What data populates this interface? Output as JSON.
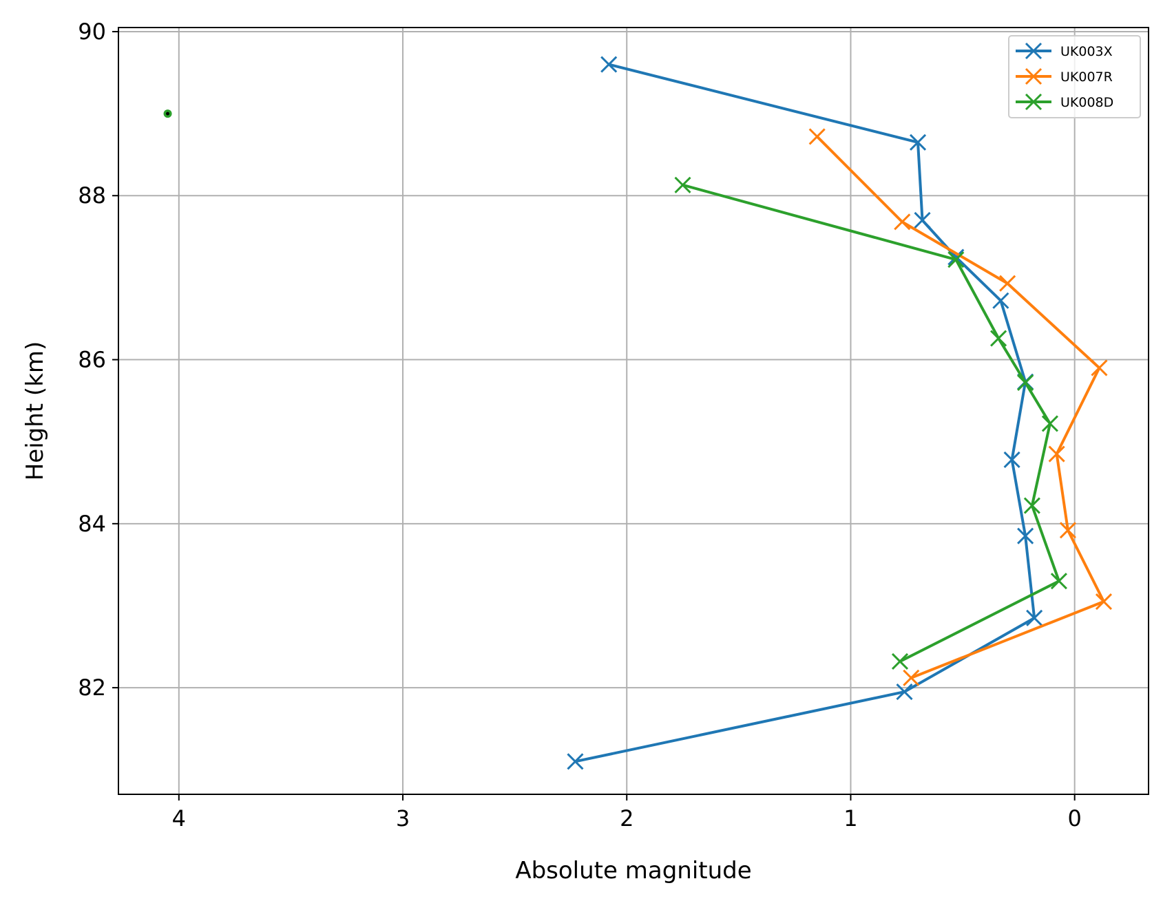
{
  "chart_data": {
    "type": "line",
    "title": "",
    "xlabel": "Absolute magnitude",
    "ylabel": "Height (km)",
    "xlim": [
      4.27,
      -0.33
    ],
    "ylim": [
      80.7,
      90.05
    ],
    "x_inverted": true,
    "grid": true,
    "x_ticks": [
      4,
      3,
      2,
      1,
      0
    ],
    "y_ticks": [
      82,
      84,
      86,
      88,
      90
    ],
    "legend_position": "top-right",
    "series": [
      {
        "name": "UK003X",
        "color": "#1f77b4",
        "marker": "x",
        "x": [
          2.08,
          0.7,
          0.68,
          0.53,
          0.33,
          0.22,
          0.28,
          0.22,
          0.18,
          0.76,
          2.23
        ],
        "y": [
          89.6,
          88.65,
          87.7,
          87.25,
          86.72,
          85.73,
          84.78,
          83.85,
          82.85,
          81.95,
          81.1
        ]
      },
      {
        "name": "UK007R",
        "color": "#ff7f0e",
        "marker": "x",
        "x": [
          1.15,
          0.77,
          0.3,
          -0.11,
          0.08,
          0.03,
          -0.13,
          0.73
        ],
        "y": [
          88.72,
          87.68,
          86.93,
          85.9,
          84.85,
          83.92,
          83.05,
          82.12
        ]
      },
      {
        "name": "UK008D",
        "color": "#2ca02c",
        "marker": "x",
        "x": [
          1.75,
          0.53,
          0.34,
          0.22,
          0.11,
          0.19,
          0.07,
          0.78
        ],
        "y": [
          88.13,
          87.22,
          86.26,
          85.72,
          85.22,
          84.22,
          83.3,
          82.32
        ]
      }
    ],
    "extra_points": [
      {
        "color": "#2ca02c",
        "marker": "dot",
        "x": 4.05,
        "y": 89.0
      }
    ]
  }
}
